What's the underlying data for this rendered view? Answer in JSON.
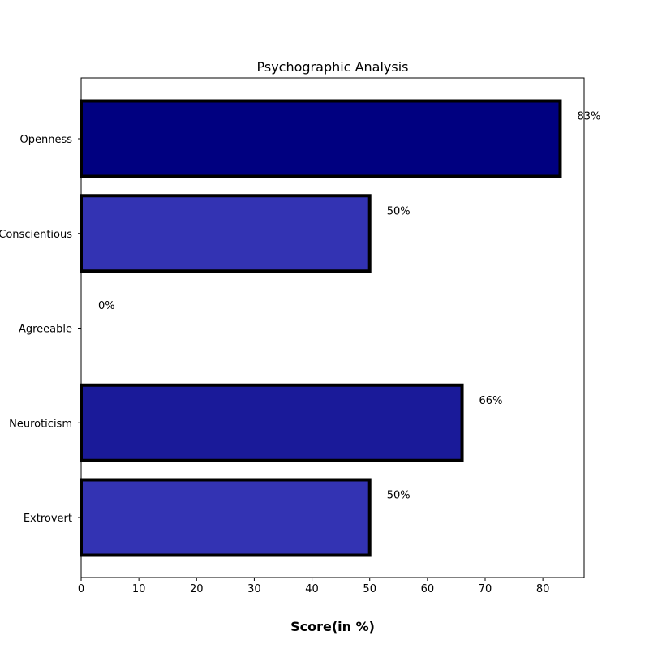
{
  "chart_data": {
    "type": "bar",
    "orientation": "horizontal",
    "title": "Psychographic Analysis",
    "xlabel": "Score(in %)",
    "ylabel": "",
    "categories": [
      "Openness",
      "Conscientious",
      "Agreeable",
      "Neuroticism",
      "Extrovert"
    ],
    "values": [
      83,
      50,
      0,
      66,
      50
    ],
    "data_labels": [
      "83%",
      "50%",
      "0%",
      "66%",
      "50%"
    ],
    "bar_colors": [
      "#000080",
      "#3333b3",
      "#000080",
      "#1a1a99",
      "#3333b3"
    ],
    "bar_edge_color": "#000000",
    "xlim": [
      0,
      87.15
    ],
    "xticks": [
      0,
      10,
      20,
      30,
      40,
      50,
      60,
      70,
      80
    ],
    "grid": false,
    "legend": false
  }
}
